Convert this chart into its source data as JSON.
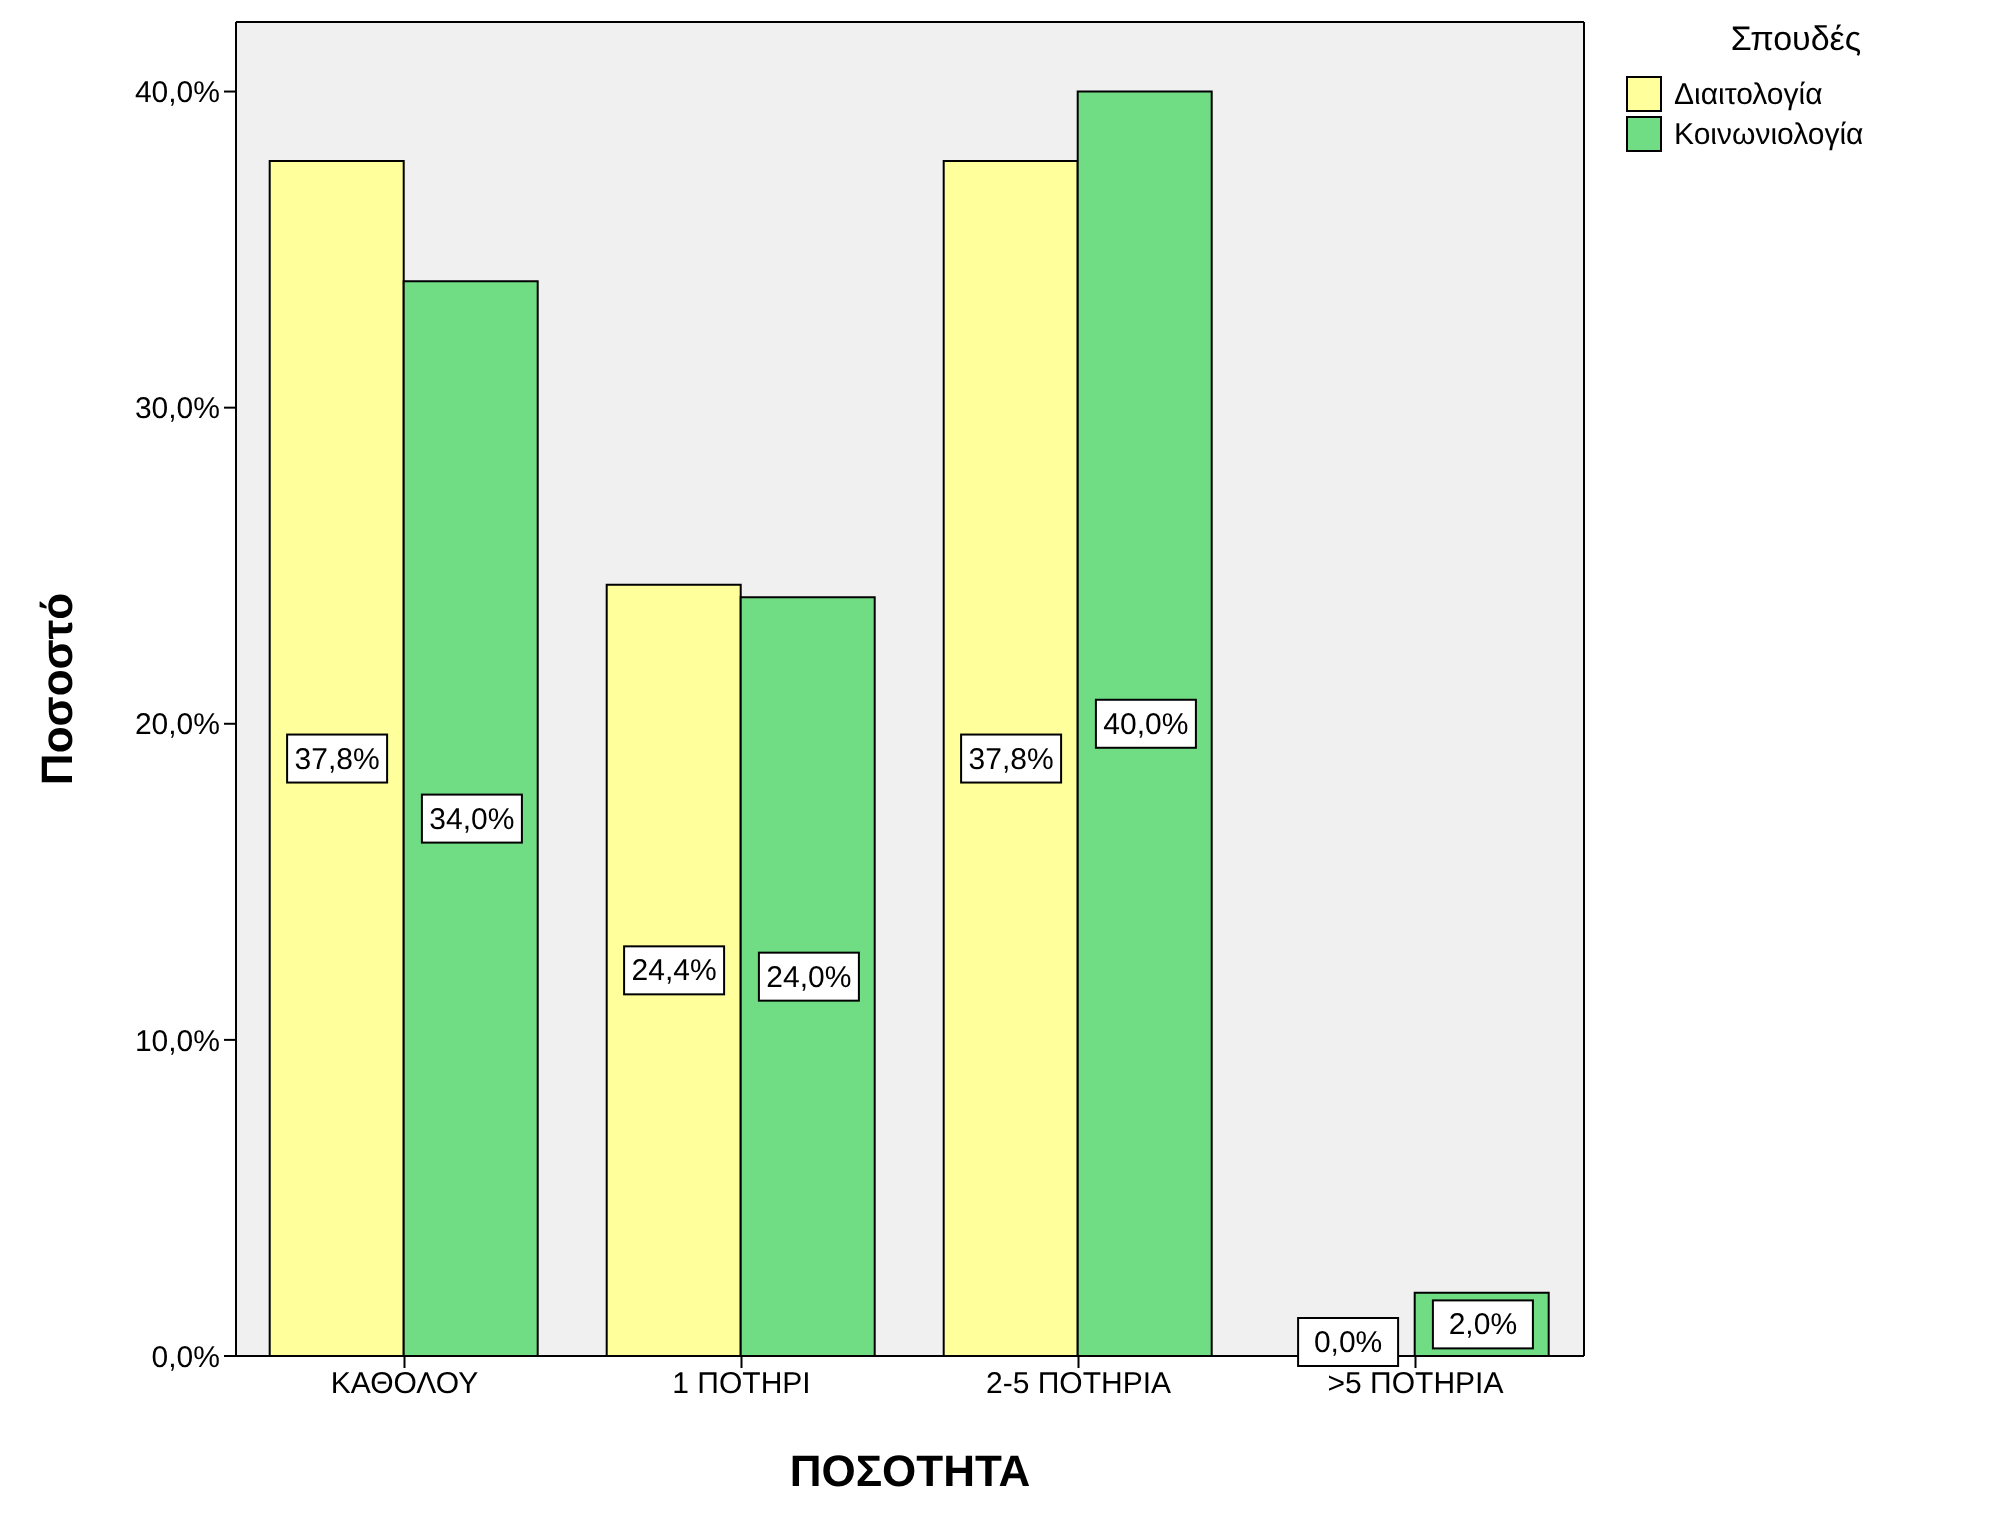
{
  "chart_data": {
    "type": "bar",
    "xlabel": "ΠΟΣΟΤΗΤΑ",
    "ylabel": "Ποσοστό",
    "legend_title": "Σπουδές",
    "categories": [
      "ΚΑΘΟΛΟΥ",
      "1 ΠΟΤΗΡΙ",
      "2-5 ΠΟΤΗΡΙΑ",
      ">5 ΠΟΤΗΡΙΑ"
    ],
    "series": [
      {
        "name": "Διαιτολογία",
        "color": "#ffff9c",
        "values": [
          37.8,
          24.4,
          37.8,
          0
        ],
        "value_labels": [
          "37,8%",
          "24,4%",
          "37,8%",
          "0,0%"
        ]
      },
      {
        "name": "Κοινωνιολογία",
        "color": "#70dc84",
        "values": [
          34.0,
          24.0,
          40.0,
          2.0
        ],
        "value_labels": [
          "34,0%",
          "24,0%",
          "40,0%",
          "2,0%"
        ]
      }
    ],
    "ylim": [
      0,
      42.2
    ],
    "yticks": [
      {
        "value": 0,
        "label": "0,0%"
      },
      {
        "value": 10,
        "label": "10,0%"
      },
      {
        "value": 20,
        "label": "20,0%"
      },
      {
        "value": 30,
        "label": "30,0%"
      },
      {
        "value": 40,
        "label": "40,0%"
      }
    ],
    "legend": "top right"
  }
}
